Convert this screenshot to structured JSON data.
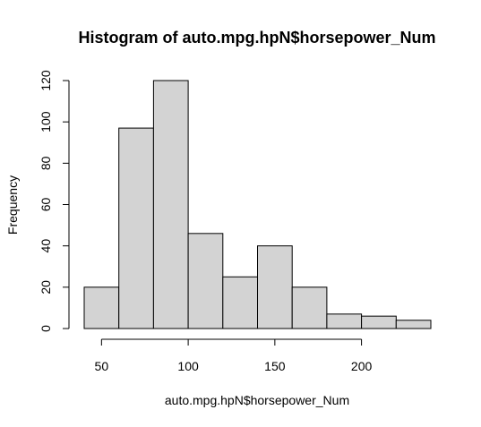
{
  "chart_data": {
    "type": "histogram",
    "title": "Histogram of auto.mpg.hpN$horsepower_Num",
    "xlabel": "auto.mpg.hpN$horsepower_Num",
    "ylabel": "Frequency",
    "bins": [
      {
        "start": 40,
        "end": 60,
        "count": 20
      },
      {
        "start": 60,
        "end": 80,
        "count": 97
      },
      {
        "start": 80,
        "end": 100,
        "count": 120
      },
      {
        "start": 100,
        "end": 120,
        "count": 46
      },
      {
        "start": 120,
        "end": 140,
        "count": 25
      },
      {
        "start": 140,
        "end": 160,
        "count": 40
      },
      {
        "start": 160,
        "end": 180,
        "count": 20
      },
      {
        "start": 180,
        "end": 200,
        "count": 7
      },
      {
        "start": 200,
        "end": 220,
        "count": 6
      },
      {
        "start": 220,
        "end": 240,
        "count": 4
      }
    ],
    "x_ticks": [
      50,
      100,
      150,
      200
    ],
    "y_ticks": [
      0,
      20,
      40,
      60,
      80,
      100,
      120
    ],
    "xlim": [
      40,
      240
    ],
    "ylim": [
      0,
      120
    ],
    "bar_color": "#d3d3d3",
    "edge_color": "#000000"
  }
}
